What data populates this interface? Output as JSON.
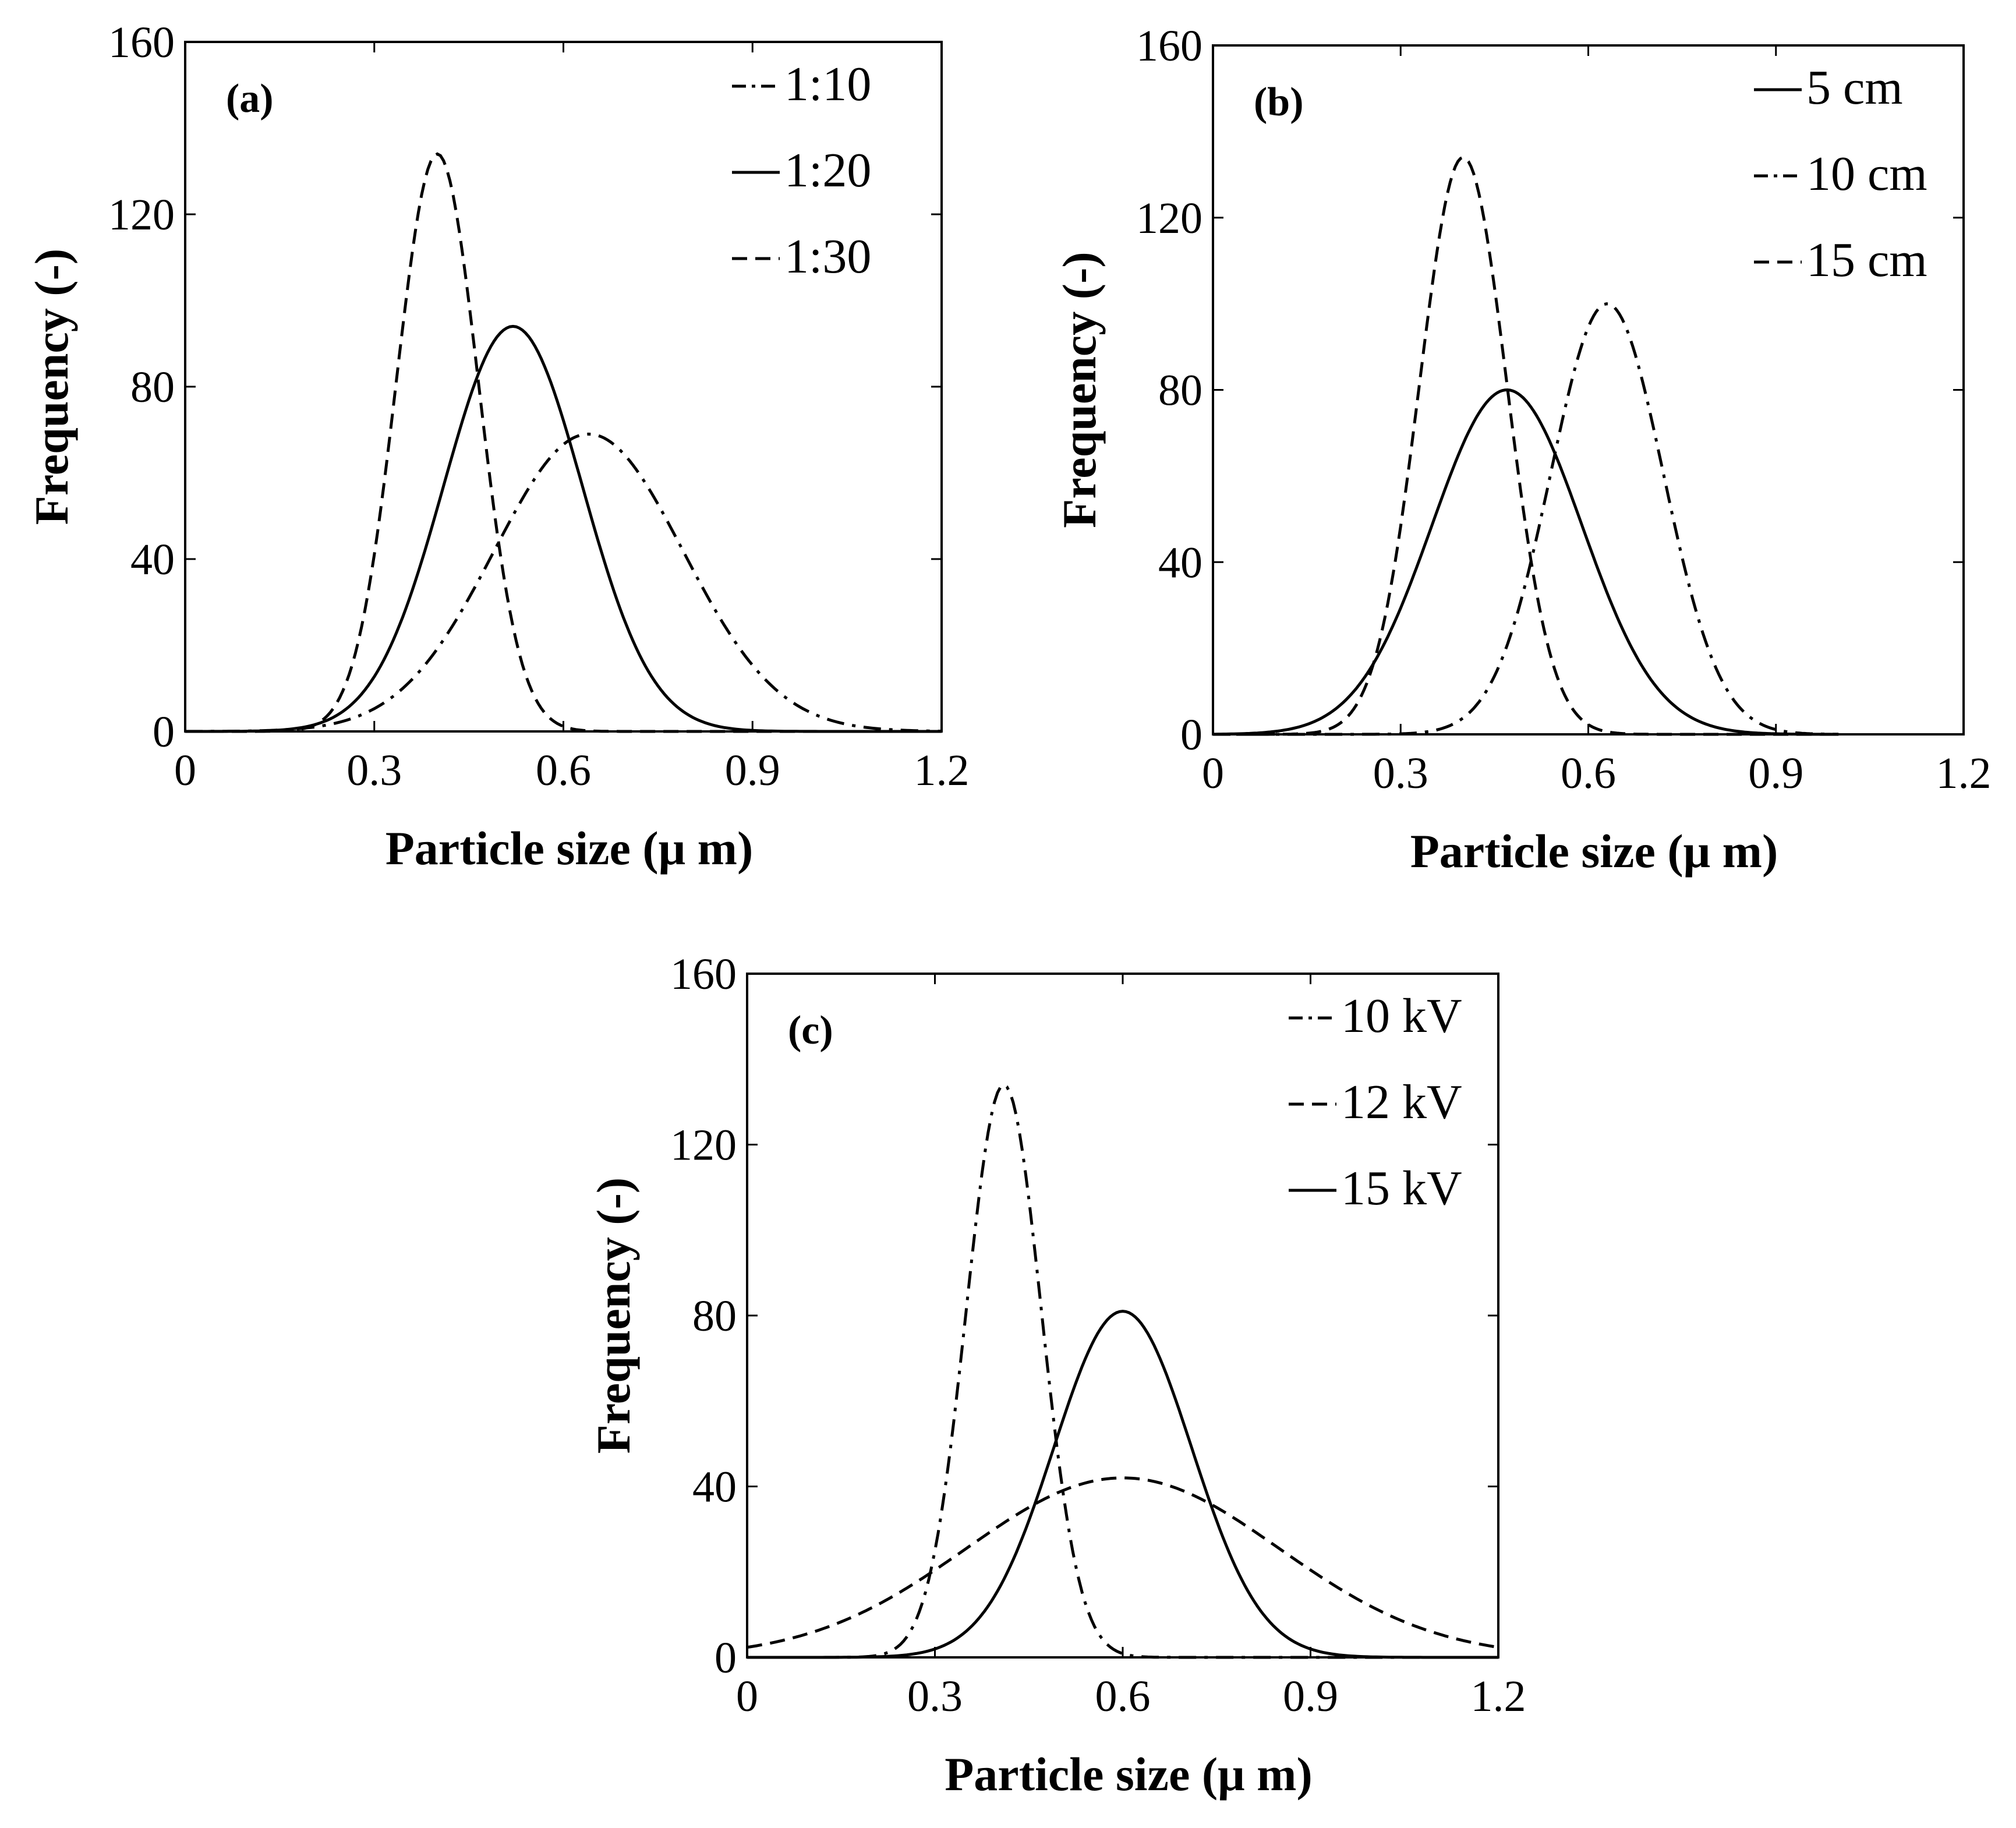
{
  "chart_data": [
    {
      "panel": "(a)",
      "type": "line",
      "xlabel": "Particle size (μ m)",
      "ylabel": "Frequency (-)",
      "xlim": [
        0,
        1.2
      ],
      "ylim": [
        0,
        160
      ],
      "xticks": [
        "0",
        "0.3",
        "0.6",
        "0.9",
        "1.2"
      ],
      "yticks": [
        "0",
        "40",
        "80",
        "120",
        "160"
      ],
      "legend_position": "top-right",
      "series": [
        {
          "name": "1:10",
          "style": "dashdot",
          "mean": 0.64,
          "sd": 0.15,
          "peak": 69,
          "x_range": [
            0,
            1.2
          ]
        },
        {
          "name": "1:20",
          "style": "solid",
          "mean": 0.52,
          "sd": 0.11,
          "peak": 94,
          "x_range": [
            0,
            1.2
          ]
        },
        {
          "name": "1:30",
          "style": "dashed",
          "mean": 0.4,
          "sd": 0.065,
          "peak": 134,
          "x_range": [
            0,
            1.2
          ]
        }
      ]
    },
    {
      "panel": "(b)",
      "type": "line",
      "xlabel": "Particle size (μ m)",
      "ylabel": "Frequency (-)",
      "xlim": [
        0,
        1.2
      ],
      "ylim": [
        0,
        160
      ],
      "xticks": [
        "0",
        "0.3",
        "0.6",
        "0.9",
        "1.2"
      ],
      "yticks": [
        "0",
        "40",
        "80",
        "120",
        "160"
      ],
      "legend_position": "top-right",
      "series": [
        {
          "name": "5 cm",
          "style": "solid",
          "mean": 0.47,
          "sd": 0.12,
          "peak": 80,
          "x_range": [
            0,
            1.0
          ]
        },
        {
          "name": "10 cm",
          "style": "dashdot",
          "mean": 0.63,
          "sd": 0.09,
          "peak": 100,
          "x_range": [
            0,
            1.0
          ]
        },
        {
          "name": "15 cm",
          "style": "dashed",
          "mean": 0.4,
          "sd": 0.07,
          "peak": 134,
          "x_range": [
            0,
            1.0
          ]
        }
      ]
    },
    {
      "panel": "(c)",
      "type": "line",
      "xlabel": "Particle size (μ m)",
      "ylabel": "Frequency (-)",
      "xlim": [
        0,
        1.2
      ],
      "ylim": [
        0,
        160
      ],
      "xticks": [
        "0",
        "0.3",
        "0.6",
        "0.9",
        "1.2"
      ],
      "yticks": [
        "0",
        "40",
        "80",
        "120",
        "160"
      ],
      "legend_position": "top-right",
      "series": [
        {
          "name": "10 kV",
          "style": "dashdot",
          "mean": 0.41,
          "sd": 0.06,
          "peak": 134,
          "x_range": [
            0,
            1.2
          ]
        },
        {
          "name": "12 kV",
          "style": "dashed",
          "mean": 0.6,
          "sd": 0.25,
          "peak": 42,
          "x_range": [
            0,
            1.2
          ]
        },
        {
          "name": "15 kV",
          "style": "solid",
          "mean": 0.6,
          "sd": 0.11,
          "peak": 81,
          "x_range": [
            0,
            1.2
          ]
        }
      ]
    }
  ]
}
